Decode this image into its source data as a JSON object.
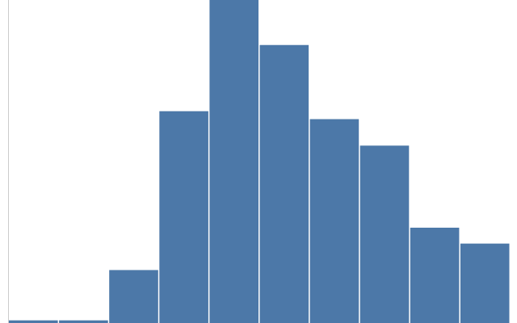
{
  "chart_data": {
    "type": "bar",
    "subtype": "histogram",
    "title": "",
    "xlabel": "",
    "ylabel": "",
    "categories": [
      "",
      "",
      "",
      "",
      "",
      "",
      "",
      "",
      "",
      ""
    ],
    "values": [
      1,
      1,
      20,
      80,
      122,
      105,
      77,
      67,
      36,
      30
    ],
    "ylim": [
      0,
      122
    ],
    "grid": false,
    "legend": "none",
    "bar_color": "#4c78a8",
    "axis_color": "#cccccc"
  }
}
